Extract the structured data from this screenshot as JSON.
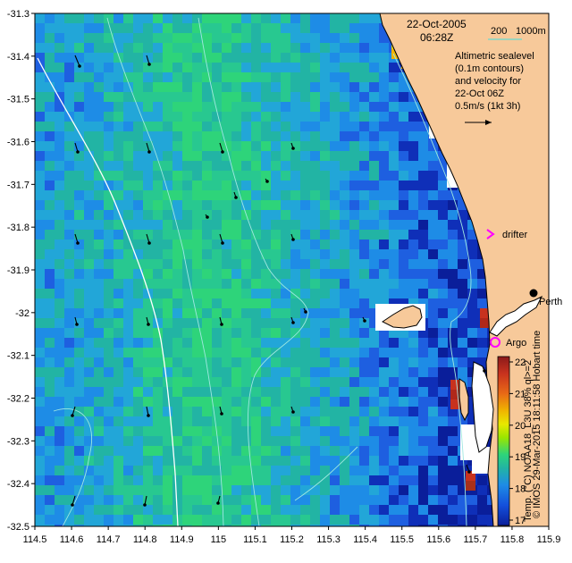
{
  "header": {
    "date": "22-Oct-2005",
    "time": "06:28Z"
  },
  "bathymetry_legend": {
    "contour_200": "200",
    "contour_1000": "1000m",
    "line_color": "#7fd7c8"
  },
  "altimetry_note": {
    "line1": "Altimetric sealevel",
    "line2": "(0.1m contours)",
    "line3": "and velocity for",
    "line4": "22-Oct 06Z",
    "line5": "0.5m/s (1kt 3h)"
  },
  "markers": {
    "drifter_label": "drifter",
    "drifter_color": "#ff00ff",
    "argo_label": "Argo",
    "argo_color": "#ff00ff",
    "city_label": "Perth"
  },
  "credit": "© IMOS 29-Mar-2015 18:11:58 Hobart time",
  "colorbar": {
    "title": "Temp. (°C) NOAA18_L3U 38% ql>=2",
    "ticks": [
      "22",
      "21",
      "20",
      "19",
      "18",
      "17"
    ],
    "colors": [
      "#8b1a1a",
      "#c8321e",
      "#e86a16",
      "#f0b400",
      "#e8e800",
      "#9ae600",
      "#2ed47a",
      "#22b4a4",
      "#1e8ce6",
      "#1450dc",
      "#0a1e9a"
    ]
  },
  "axes": {
    "x_ticks": [
      "114.5",
      "114.6",
      "114.7",
      "114.8",
      "114.9",
      "115",
      "115.1",
      "115.2",
      "115.3",
      "115.4",
      "115.5",
      "115.6",
      "115.7",
      "115.8",
      "115.9"
    ],
    "y_ticks": [
      "-31.3",
      "-31.4",
      "-31.5",
      "-31.6",
      "-31.7",
      "-31.8",
      "-31.9",
      "-32",
      "-32.1",
      "-32.2",
      "-32.3",
      "-32.4",
      "-32.5"
    ],
    "lon_range": [
      114.5,
      115.9
    ],
    "lat_range": [
      -32.5,
      -31.3
    ]
  },
  "palette": {
    "land": "#f7c99a",
    "coast": "#000000",
    "contour_white": "#ffffff",
    "contour_light": "#9fe8e0",
    "no_data": "#ffffff",
    "arrow": "#000000"
  }
}
